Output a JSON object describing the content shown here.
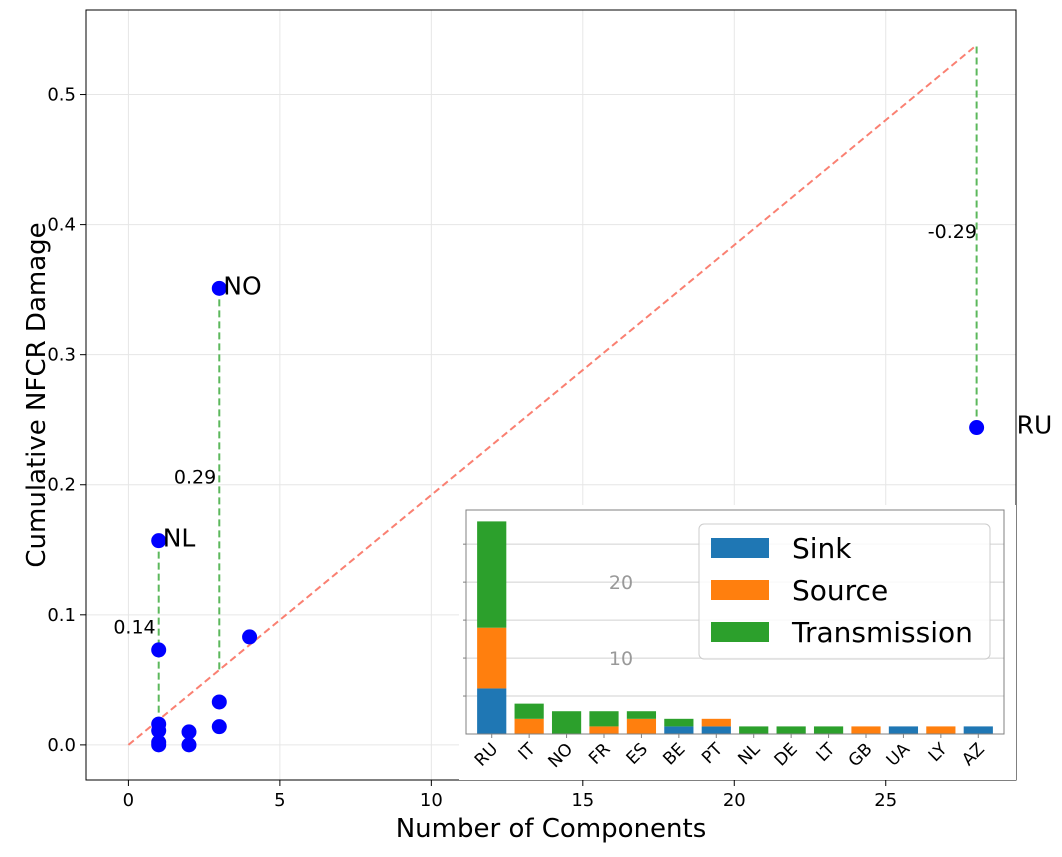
{
  "chart_data": [
    {
      "type": "scatter",
      "title": "",
      "xlabel": "Number of Components",
      "ylabel": "Cumulative NFCR Damage",
      "xlim": [
        -1.4,
        29.3
      ],
      "ylim": [
        -0.027,
        0.565
      ],
      "x_ticks": [
        0,
        5,
        10,
        15,
        20,
        25
      ],
      "y_ticks": [
        0.0,
        0.1,
        0.2,
        0.3,
        0.4,
        0.5
      ],
      "grid": true,
      "colors": {
        "points": "#0000ff",
        "reference_line": "#fa8072",
        "residual_lines": "#5cb85c",
        "grid": "#e6e6e6",
        "axes": "#000000"
      },
      "points": [
        {
          "x": 1,
          "y": 0.0
        },
        {
          "x": 1,
          "y": 0.002
        },
        {
          "x": 1,
          "y": 0.011
        },
        {
          "x": 1,
          "y": 0.016
        },
        {
          "x": 1,
          "y": 0.073
        },
        {
          "x": 1,
          "y": 0.157
        },
        {
          "x": 2,
          "y": 0.0
        },
        {
          "x": 2,
          "y": 0.01
        },
        {
          "x": 3,
          "y": 0.014
        },
        {
          "x": 3,
          "y": 0.033
        },
        {
          "x": 3,
          "y": 0.351
        },
        {
          "x": 4,
          "y": 0.083
        },
        {
          "x": 28,
          "y": 0.244
        }
      ],
      "reference_line": {
        "x": [
          0,
          28
        ],
        "y": [
          0.0,
          0.538
        ]
      },
      "residuals": [
        {
          "x": 1,
          "y_from": 0.157,
          "y_to": 0.019,
          "label": "0.14",
          "label_x": 0.2,
          "label_y": 0.09
        },
        {
          "x": 3,
          "y_from": 0.351,
          "y_to": 0.058,
          "label": "0.29",
          "label_x": 2.2,
          "label_y": 0.205
        },
        {
          "x": 28,
          "y_from": 0.244,
          "y_to": 0.538,
          "label": "-0.29",
          "label_x": 27.2,
          "label_y": 0.394
        }
      ],
      "point_labels": [
        {
          "text": "NO",
          "x": 3,
          "y": 0.351
        },
        {
          "text": "NL",
          "x": 1,
          "y": 0.157
        },
        {
          "text": "RU",
          "x": 28,
          "y": 0.244
        }
      ]
    },
    {
      "type": "bar",
      "stacked": true,
      "categories": [
        "RU",
        "IT",
        "NO",
        "FR",
        "ES",
        "BE",
        "PT",
        "NL",
        "DE",
        "LT",
        "GB",
        "UA",
        "LY",
        "AZ"
      ],
      "series": [
        {
          "name": "Sink",
          "color": "#1f77b4",
          "values": [
            6,
            0,
            0,
            0,
            0,
            1,
            1,
            0,
            0,
            0,
            0,
            1,
            0,
            1
          ]
        },
        {
          "name": "Source",
          "color": "#ff7f0e",
          "values": [
            8,
            2,
            0,
            1,
            2,
            0,
            1,
            0,
            0,
            0,
            1,
            0,
            1,
            0
          ]
        },
        {
          "name": "Transmission",
          "color": "#2ca02c",
          "values": [
            14,
            2,
            3,
            2,
            1,
            1,
            0,
            1,
            1,
            1,
            0,
            0,
            0,
            0
          ]
        }
      ],
      "ylim": [
        0,
        29.5
      ],
      "y_ticks": [
        10,
        20
      ],
      "y_minor_ticks": [
        5,
        10,
        15,
        20,
        25
      ],
      "grid": true,
      "legend_position": "top-right",
      "xtick_rotation": 45
    }
  ]
}
